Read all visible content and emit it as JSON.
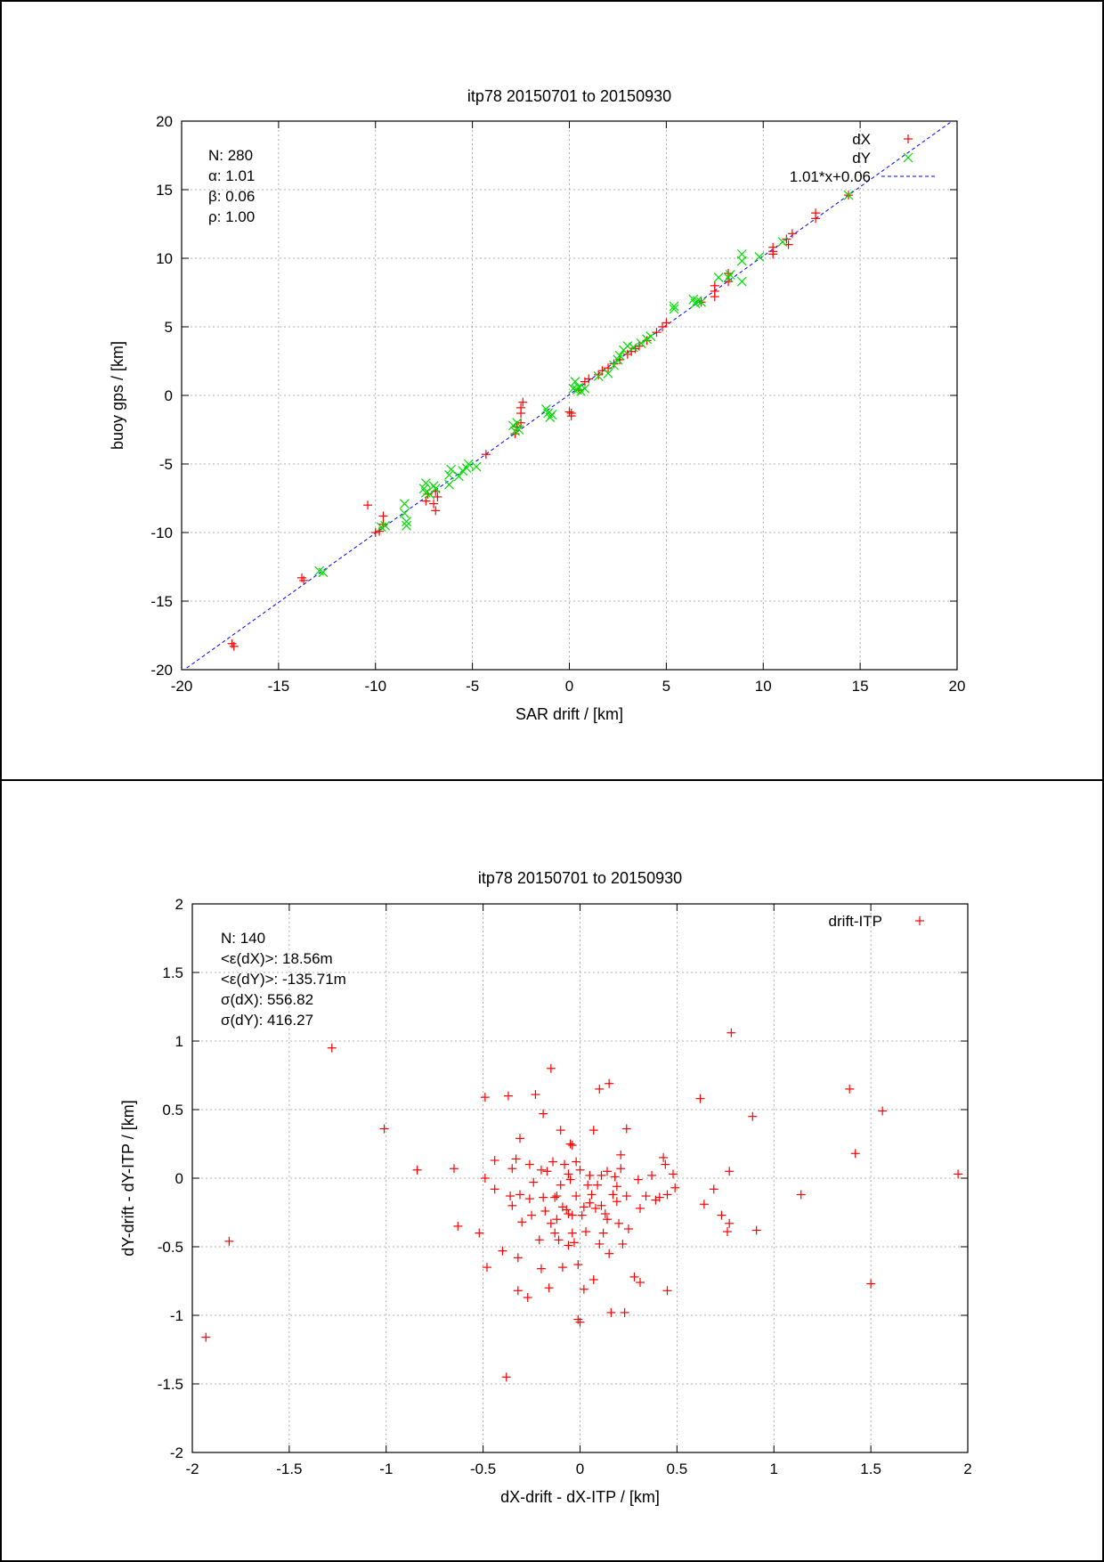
{
  "chart_data": [
    {
      "type": "scatter",
      "title": "itp78 20150701 to 20150930",
      "xlabel": "SAR drift / [km]",
      "ylabel": "buoy gps / [km]",
      "xlim": [
        -20,
        20
      ],
      "ylim": [
        -20,
        20
      ],
      "xticks": [
        "-20",
        "-15",
        "-10",
        "-5",
        "0",
        "5",
        "10",
        "15",
        "20"
      ],
      "yticks": [
        "-20",
        "-15",
        "-10",
        "-5",
        "0",
        "5",
        "10",
        "15",
        "20"
      ],
      "grid": true,
      "legend_position": "top-right",
      "stats": [
        "N: 280",
        "α: 1.01",
        "β: 0.06",
        "ρ: 1.00"
      ],
      "fit": {
        "name": "1.01*x+0.06",
        "slope": 1.01,
        "intercept": 0.06,
        "color": "#0000ff"
      },
      "series": [
        {
          "name": "dX",
          "marker": "plus",
          "color": "#ff0000",
          "points": [
            [
              -17.4,
              -18.1
            ],
            [
              -17.3,
              -18.3
            ],
            [
              -13.8,
              -13.3
            ],
            [
              -13.7,
              -13.5
            ],
            [
              -10.4,
              -8.0
            ],
            [
              -10.0,
              -10.0
            ],
            [
              -9.8,
              -9.9
            ],
            [
              -9.6,
              -8.8
            ],
            [
              -9.6,
              -9.4
            ],
            [
              -7.4,
              -7.7
            ],
            [
              -7.3,
              -7.2
            ],
            [
              -7.0,
              -7.9
            ],
            [
              -6.9,
              -8.4
            ],
            [
              -6.9,
              -7.0
            ],
            [
              -6.8,
              -7.4
            ],
            [
              -4.3,
              -4.3
            ],
            [
              -2.8,
              -2.8
            ],
            [
              -2.7,
              -2.3
            ],
            [
              -2.5,
              -2.0
            ],
            [
              -2.5,
              -1.3
            ],
            [
              -2.5,
              -0.9
            ],
            [
              -2.4,
              -0.5
            ],
            [
              0.0,
              -1.2
            ],
            [
              0.1,
              -1.5
            ],
            [
              0.1,
              -1.3
            ],
            [
              0.5,
              0.4
            ],
            [
              0.8,
              1.0
            ],
            [
              1.0,
              1.2
            ],
            [
              1.5,
              1.5
            ],
            [
              1.7,
              1.8
            ],
            [
              2.0,
              2.0
            ],
            [
              2.3,
              2.3
            ],
            [
              2.6,
              2.6
            ],
            [
              3.0,
              3.0
            ],
            [
              3.2,
              3.2
            ],
            [
              3.4,
              3.4
            ],
            [
              3.6,
              3.6
            ],
            [
              4.0,
              4.0
            ],
            [
              4.5,
              4.6
            ],
            [
              4.8,
              5.0
            ],
            [
              5.0,
              5.3
            ],
            [
              6.8,
              6.8
            ],
            [
              7.5,
              7.6
            ],
            [
              7.5,
              8.0
            ],
            [
              7.5,
              7.2
            ],
            [
              8.2,
              8.3
            ],
            [
              8.2,
              8.9
            ],
            [
              10.5,
              10.5
            ],
            [
              10.5,
              10.3
            ],
            [
              10.5,
              10.8
            ],
            [
              11.2,
              11.4
            ],
            [
              11.3,
              11.0
            ],
            [
              11.5,
              11.8
            ],
            [
              12.7,
              12.9
            ],
            [
              12.7,
              13.3
            ],
            [
              14.4,
              14.6
            ]
          ]
        },
        {
          "name": "dY",
          "marker": "cross",
          "color": "#00dd00",
          "points": [
            [
              -12.9,
              -12.8
            ],
            [
              -12.7,
              -12.9
            ],
            [
              -9.5,
              -9.5
            ],
            [
              -9.7,
              -9.6
            ],
            [
              -8.5,
              -7.9
            ],
            [
              -8.5,
              -8.6
            ],
            [
              -8.4,
              -9.2
            ],
            [
              -8.4,
              -9.5
            ],
            [
              -7.4,
              -6.4
            ],
            [
              -7.5,
              -6.8
            ],
            [
              -7.4,
              -7.1
            ],
            [
              -7.2,
              -7.2
            ],
            [
              -7.0,
              -6.6
            ],
            [
              -6.9,
              -6.8
            ],
            [
              -6.1,
              -5.4
            ],
            [
              -6.2,
              -5.8
            ],
            [
              -6.2,
              -6.5
            ],
            [
              -5.7,
              -5.9
            ],
            [
              -5.5,
              -5.5
            ],
            [
              -5.2,
              -5.0
            ],
            [
              -5.3,
              -5.3
            ],
            [
              -4.8,
              -5.2
            ],
            [
              -2.9,
              -2.2
            ],
            [
              -2.8,
              -2.6
            ],
            [
              -2.7,
              -2.0
            ],
            [
              -2.6,
              -2.5
            ],
            [
              -1.2,
              -1.0
            ],
            [
              -1.1,
              -1.3
            ],
            [
              -1.0,
              -1.6
            ],
            [
              -0.9,
              -1.4
            ],
            [
              0.2,
              0.5
            ],
            [
              0.3,
              1.0
            ],
            [
              0.4,
              0.4
            ],
            [
              0.5,
              0.6
            ],
            [
              0.6,
              0.3
            ],
            [
              0.8,
              0.5
            ],
            [
              1.5,
              1.4
            ],
            [
              2.0,
              1.6
            ],
            [
              2.3,
              2.2
            ],
            [
              2.5,
              2.6
            ],
            [
              2.6,
              2.9
            ],
            [
              2.8,
              3.3
            ],
            [
              3.0,
              3.6
            ],
            [
              3.3,
              3.5
            ],
            [
              3.7,
              3.8
            ],
            [
              4.0,
              4.1
            ],
            [
              4.2,
              4.3
            ],
            [
              5.4,
              6.3
            ],
            [
              5.4,
              6.5
            ],
            [
              6.4,
              7.0
            ],
            [
              6.5,
              6.7
            ],
            [
              6.6,
              6.9
            ],
            [
              6.8,
              6.8
            ],
            [
              7.7,
              8.6
            ],
            [
              8.2,
              8.6
            ],
            [
              8.3,
              8.8
            ],
            [
              8.9,
              8.3
            ],
            [
              8.9,
              10.3
            ],
            [
              8.9,
              9.8
            ],
            [
              9.8,
              10.1
            ],
            [
              11.0,
              11.2
            ],
            [
              14.4,
              14.6
            ]
          ]
        }
      ]
    },
    {
      "type": "scatter",
      "title": "itp78 20150701 to 20150930",
      "xlabel": "dX-drift - dX-ITP / [km]",
      "ylabel": "dY-drift - dY-ITP / [km]",
      "xlim": [
        -2,
        2
      ],
      "ylim": [
        -2,
        2
      ],
      "xticks": [
        "-2",
        "-1.5",
        "-1",
        "-0.5",
        "0",
        "0.5",
        "1",
        "1.5",
        "2"
      ],
      "yticks": [
        "-2",
        "-1.5",
        "-1",
        "-0.5",
        "0",
        "0.5",
        "1",
        "1.5",
        "2"
      ],
      "grid": true,
      "legend_position": "top-right",
      "stats": [
        "N: 140",
        "<ε(dX)>:  18.56m",
        "<ε(dY)>: -135.71m",
        "σ(dX):  556.82",
        "σ(dY):  416.27"
      ],
      "series": [
        {
          "name": "drift-ITP",
          "marker": "plus",
          "color": "#ff0000",
          "points": [
            [
              -1.93,
              -1.16
            ],
            [
              -1.81,
              -0.46
            ],
            [
              -1.28,
              0.95
            ],
            [
              -1.01,
              0.36
            ],
            [
              -0.84,
              0.06
            ],
            [
              -0.65,
              0.07
            ],
            [
              -0.63,
              -0.35
            ],
            [
              -0.52,
              -0.4
            ],
            [
              -0.49,
              0.59
            ],
            [
              -0.49,
              0.0
            ],
            [
              -0.48,
              -0.65
            ],
            [
              -0.44,
              -0.08
            ],
            [
              -0.44,
              0.13
            ],
            [
              -0.4,
              -0.53
            ],
            [
              -0.38,
              -1.45
            ],
            [
              -0.37,
              0.6
            ],
            [
              -0.36,
              -0.13
            ],
            [
              -0.35,
              0.07
            ],
            [
              -0.35,
              -0.2
            ],
            [
              -0.33,
              0.14
            ],
            [
              -0.32,
              -0.58
            ],
            [
              -0.32,
              -0.82
            ],
            [
              -0.31,
              0.29
            ],
            [
              -0.31,
              -0.12
            ],
            [
              -0.3,
              -0.32
            ],
            [
              -0.27,
              -0.87
            ],
            [
              -0.26,
              -0.15
            ],
            [
              -0.26,
              0.1
            ],
            [
              -0.25,
              -0.27
            ],
            [
              -0.24,
              -0.03
            ],
            [
              -0.23,
              0.61
            ],
            [
              -0.21,
              -0.45
            ],
            [
              -0.2,
              -0.66
            ],
            [
              -0.2,
              0.06
            ],
            [
              -0.19,
              0.47
            ],
            [
              -0.19,
              -0.14
            ],
            [
              -0.18,
              -0.24
            ],
            [
              -0.17,
              0.05
            ],
            [
              -0.16,
              -0.8
            ],
            [
              -0.15,
              0.8
            ],
            [
              -0.15,
              -0.33
            ],
            [
              -0.14,
              0.12
            ],
            [
              -0.13,
              -0.14
            ],
            [
              -0.13,
              -0.4
            ],
            [
              -0.12,
              -0.13
            ],
            [
              -0.12,
              -0.3
            ],
            [
              -0.11,
              -0.45
            ],
            [
              -0.1,
              0.35
            ],
            [
              -0.1,
              -0.05
            ],
            [
              -0.09,
              -0.21
            ],
            [
              -0.09,
              -0.65
            ],
            [
              -0.08,
              0.1
            ],
            [
              -0.07,
              -0.23
            ],
            [
              -0.06,
              0.03
            ],
            [
              -0.06,
              -0.26
            ],
            [
              -0.06,
              -0.49
            ],
            [
              -0.05,
              0.25
            ],
            [
              -0.05,
              -0.01
            ],
            [
              -0.04,
              -0.4
            ],
            [
              -0.04,
              0.24
            ],
            [
              -0.04,
              -0.27
            ],
            [
              -0.03,
              -0.47
            ],
            [
              -0.02,
              0.12
            ],
            [
              -0.02,
              -0.13
            ],
            [
              -0.01,
              -0.63
            ],
            [
              -0.01,
              -1.03
            ],
            [
              0.0,
              0.06
            ],
            [
              0.0,
              -1.05
            ],
            [
              0.01,
              -0.27
            ],
            [
              0.02,
              -0.21
            ],
            [
              0.02,
              -0.81
            ],
            [
              0.03,
              -0.39
            ],
            [
              0.04,
              -0.05
            ],
            [
              0.05,
              0.02
            ],
            [
              0.05,
              -0.18
            ],
            [
              0.06,
              -0.12
            ],
            [
              0.07,
              0.35
            ],
            [
              0.07,
              -0.74
            ],
            [
              0.08,
              -0.22
            ],
            [
              0.09,
              -0.05
            ],
            [
              0.1,
              -0.48
            ],
            [
              0.1,
              0.65
            ],
            [
              0.11,
              0.02
            ],
            [
              0.11,
              -0.2
            ],
            [
              0.12,
              -0.4
            ],
            [
              0.13,
              -0.26
            ],
            [
              0.14,
              0.05
            ],
            [
              0.14,
              -0.3
            ],
            [
              0.15,
              -0.55
            ],
            [
              0.15,
              0.69
            ],
            [
              0.16,
              -0.98
            ],
            [
              0.17,
              -0.12
            ],
            [
              0.18,
              0.01
            ],
            [
              0.19,
              -0.06
            ],
            [
              0.19,
              -0.17
            ],
            [
              0.2,
              -0.33
            ],
            [
              0.21,
              0.17
            ],
            [
              0.21,
              0.07
            ],
            [
              0.22,
              -0.48
            ],
            [
              0.23,
              -0.98
            ],
            [
              0.24,
              0.36
            ],
            [
              0.24,
              -0.13
            ],
            [
              0.25,
              -0.37
            ],
            [
              0.28,
              -0.72
            ],
            [
              0.3,
              -0.01
            ],
            [
              0.31,
              -0.76
            ],
            [
              0.31,
              -0.22
            ],
            [
              0.34,
              -0.13
            ],
            [
              0.37,
              0.02
            ],
            [
              0.39,
              -0.16
            ],
            [
              0.41,
              -0.14
            ],
            [
              0.43,
              0.15
            ],
            [
              0.44,
              0.1
            ],
            [
              0.45,
              -0.12
            ],
            [
              0.45,
              -0.82
            ],
            [
              0.48,
              0.03
            ],
            [
              0.49,
              -0.07
            ],
            [
              0.62,
              0.58
            ],
            [
              0.64,
              -0.19
            ],
            [
              0.69,
              -0.08
            ],
            [
              0.73,
              -0.27
            ],
            [
              0.76,
              -0.39
            ],
            [
              0.77,
              -0.33
            ],
            [
              0.77,
              0.05
            ],
            [
              0.78,
              1.06
            ],
            [
              0.89,
              0.45
            ],
            [
              0.91,
              -0.38
            ],
            [
              1.14,
              -0.12
            ],
            [
              1.39,
              0.65
            ],
            [
              1.42,
              0.18
            ],
            [
              1.5,
              -0.77
            ],
            [
              1.56,
              0.49
            ],
            [
              1.95,
              0.03
            ]
          ]
        }
      ]
    }
  ]
}
